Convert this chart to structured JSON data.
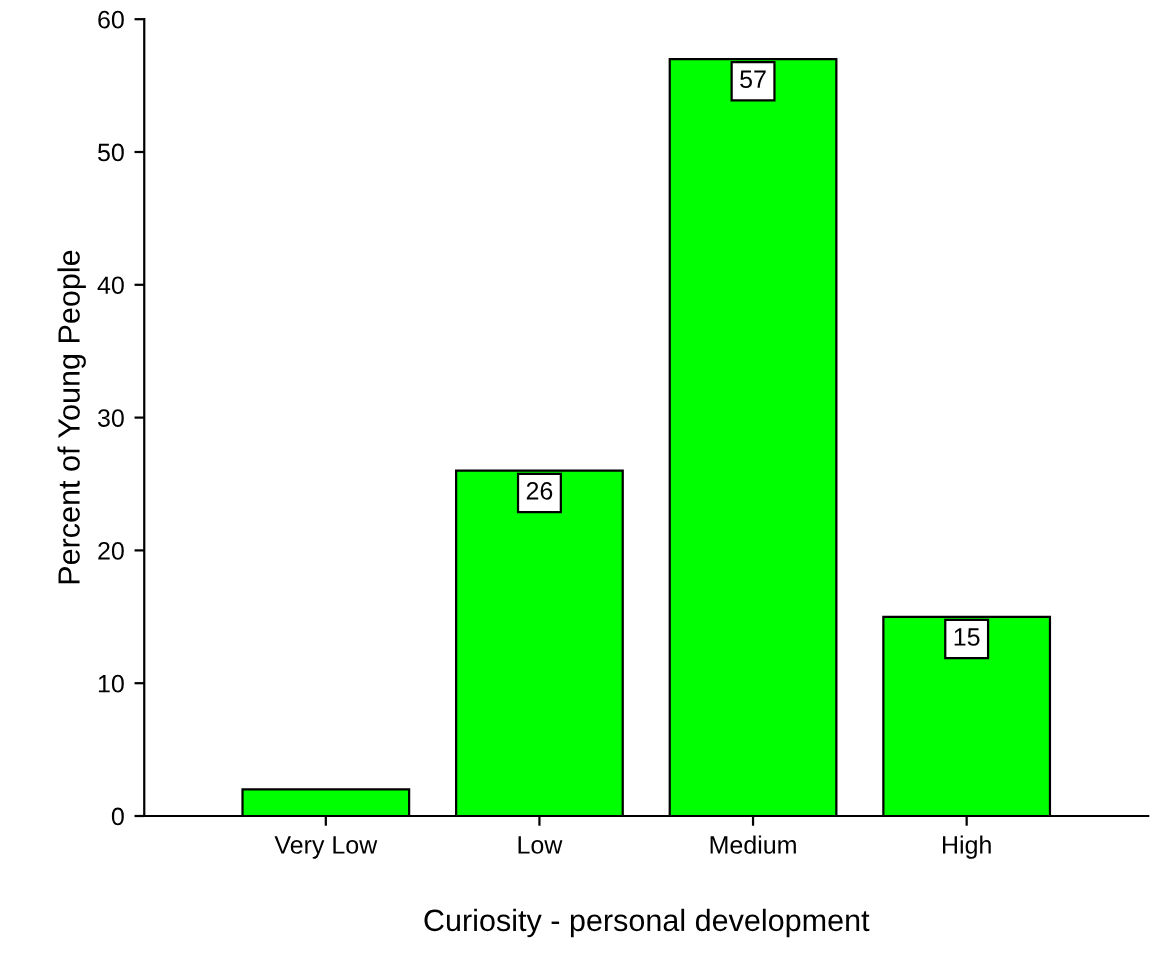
{
  "chart_data": {
    "type": "bar",
    "xlabel": "Curiosity - personal development",
    "ylabel": "Percent of Young People",
    "categories": [
      "Very Low",
      "Low",
      "Medium",
      "High"
    ],
    "values": [
      2,
      26,
      57,
      15
    ],
    "value_labels": [
      null,
      "26",
      "57",
      "15"
    ],
    "color": "#00ff00",
    "ylim": [
      0,
      60
    ],
    "yticks": [
      0,
      10,
      20,
      30,
      40,
      50,
      60
    ],
    "grid": false
  }
}
